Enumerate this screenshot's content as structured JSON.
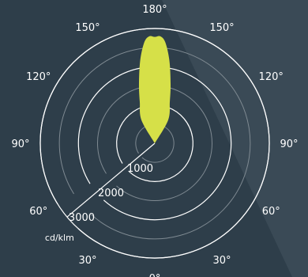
{
  "chart_data": {
    "type": "polar",
    "unit": "cd/klm",
    "rings": [
      1000,
      2000,
      3000
    ],
    "angle_labels": [
      {
        "text": "180°",
        "deg": 180
      },
      {
        "text": "150°",
        "deg": 150
      },
      {
        "text": "150°",
        "deg": -150
      },
      {
        "text": "120°",
        "deg": 120
      },
      {
        "text": "120°",
        "deg": -120
      },
      {
        "text": "90°",
        "deg": 90
      },
      {
        "text": "90°",
        "deg": -90
      },
      {
        "text": "60°",
        "deg": 60
      },
      {
        "text": "60°",
        "deg": -60
      },
      {
        "text": "30°",
        "deg": 30
      },
      {
        "text": "30°",
        "deg": -30
      },
      {
        "text": "0°",
        "deg": 0
      }
    ],
    "series": [
      {
        "fill": "#d6e048",
        "curve": [
          {
            "deg": 0,
            "value": 0
          },
          {
            "deg": 150,
            "value": 700
          },
          {
            "deg": 160,
            "value": 1150
          },
          {
            "deg": 165,
            "value": 1600
          },
          {
            "deg": 170,
            "value": 2200
          },
          {
            "deg": 174,
            "value": 2650
          },
          {
            "deg": 177,
            "value": 2800
          },
          {
            "deg": 180,
            "value": 2780
          },
          {
            "deg": 183,
            "value": 2800
          },
          {
            "deg": 186,
            "value": 2650
          },
          {
            "deg": 190,
            "value": 2200
          },
          {
            "deg": 195,
            "value": 1600
          },
          {
            "deg": 200,
            "value": 1150
          },
          {
            "deg": 210,
            "value": 700
          },
          {
            "deg": 360,
            "value": 0
          }
        ]
      }
    ],
    "colors": {
      "background": "#2e3e4a",
      "background_light": "#3a4a56",
      "ring": "#ffffff",
      "faint_ring": "#7f8a92"
    }
  }
}
